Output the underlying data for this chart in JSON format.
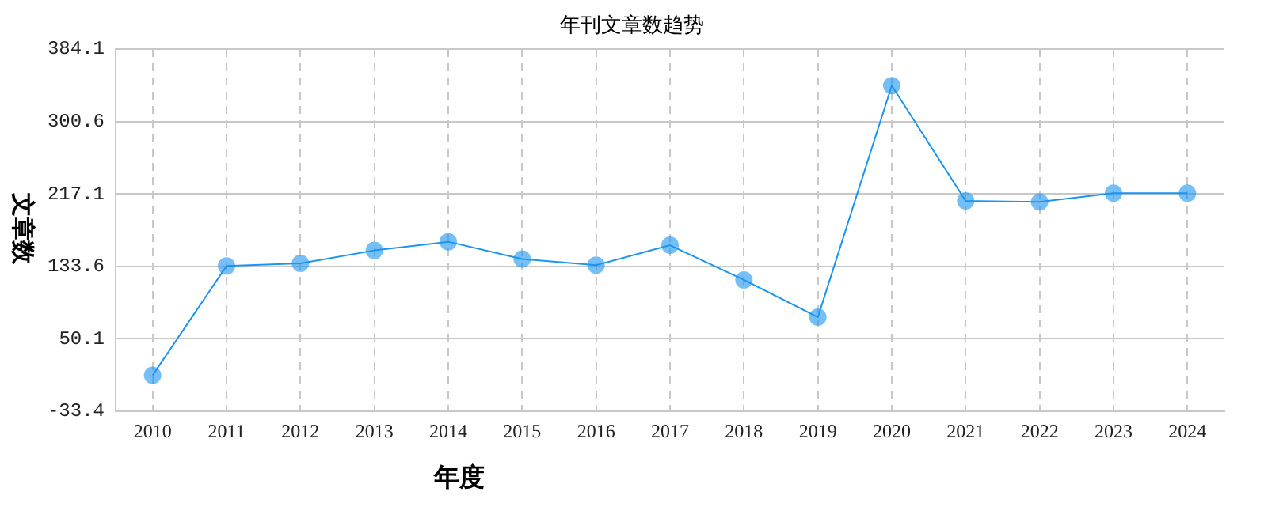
{
  "chart_data": {
    "type": "line",
    "title": "年刊文章数趋势",
    "xlabel": "年度",
    "ylabel": "文章数",
    "categories": [
      "2010",
      "2011",
      "2012",
      "2013",
      "2014",
      "2015",
      "2016",
      "2017",
      "2018",
      "2019",
      "2020",
      "2021",
      "2022",
      "2023",
      "2024"
    ],
    "series": [
      {
        "color": "#1a94f0",
        "values": [
          8,
          134,
          137,
          152,
          162,
          142,
          135,
          158,
          118,
          75,
          342,
          209,
          208,
          218,
          218
        ]
      }
    ],
    "ylim": [
      -33.4,
      384.1
    ],
    "yticks": [
      -33.4,
      50.1,
      133.6,
      217.1,
      300.6,
      384.1
    ],
    "grid": true,
    "legend": false,
    "marker": "circle",
    "line_style": "solid"
  }
}
